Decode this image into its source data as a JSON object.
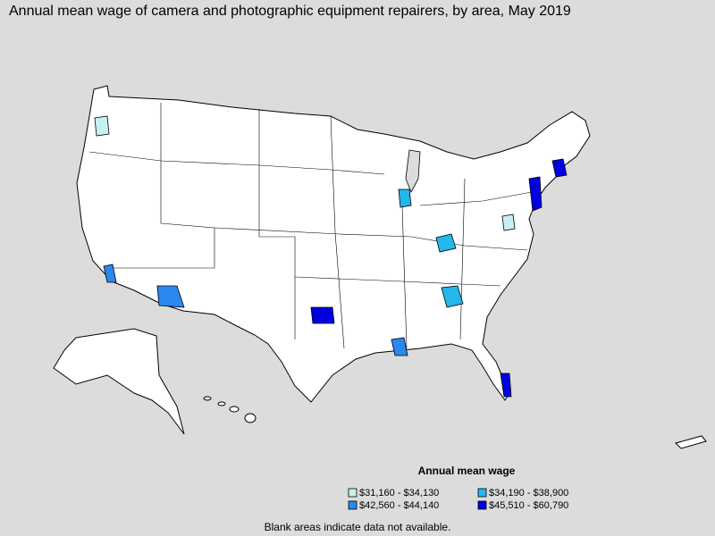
{
  "title": "Annual mean wage of camera and photographic equipment repairers, by area, May 2019",
  "legend": {
    "title": "Annual mean wage",
    "items": [
      {
        "label": "$31,160 - $34,130",
        "color": "#c8f0f0"
      },
      {
        "label": "$34,190 - $38,900",
        "color": "#22b8ec"
      },
      {
        "label": "$42,560 - $44,140",
        "color": "#2a88ee"
      },
      {
        "label": "$45,510 - $60,790",
        "color": "#0000e0"
      }
    ]
  },
  "footnote": "Blank areas indicate data not available."
}
